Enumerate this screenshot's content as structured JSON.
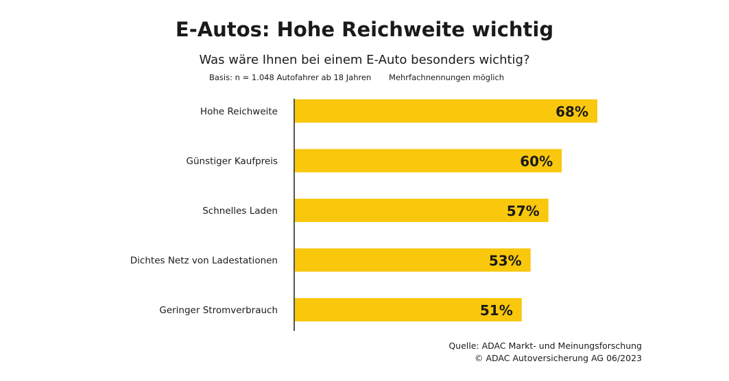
{
  "header": {
    "title": "E-Autos: Hohe Reichweite wichtig",
    "subtitle": "Was wäre Ihnen bei einem E-Auto besonders wichtig?",
    "basis": "Basis: n = 1.048 Autofahrer ab 18 Jahren",
    "note": "Mehrfachnennungen möglich"
  },
  "footer": {
    "source": "Quelle: ADAC Markt- und Meinungsforschung",
    "copyright": "© ADAC Autoversicherung AG 06/2023"
  },
  "chart_data": {
    "type": "bar",
    "orientation": "horizontal",
    "categories": [
      "Hohe Reichweite",
      "Günstiger Kaufpreis",
      "Schnelles Laden",
      "Dichtes Netz von Ladestationen",
      "Geringer Stromverbrauch"
    ],
    "values": [
      68,
      60,
      57,
      53,
      51
    ],
    "value_labels": [
      "68%",
      "60%",
      "57%",
      "53%",
      "51%"
    ],
    "unit": "%",
    "xlim": [
      0,
      100
    ],
    "grid": false,
    "legend": "none",
    "colors": {
      "bar": "#f9c70c",
      "axis": "#1a1a1a",
      "text": "#1a1a1a"
    }
  }
}
